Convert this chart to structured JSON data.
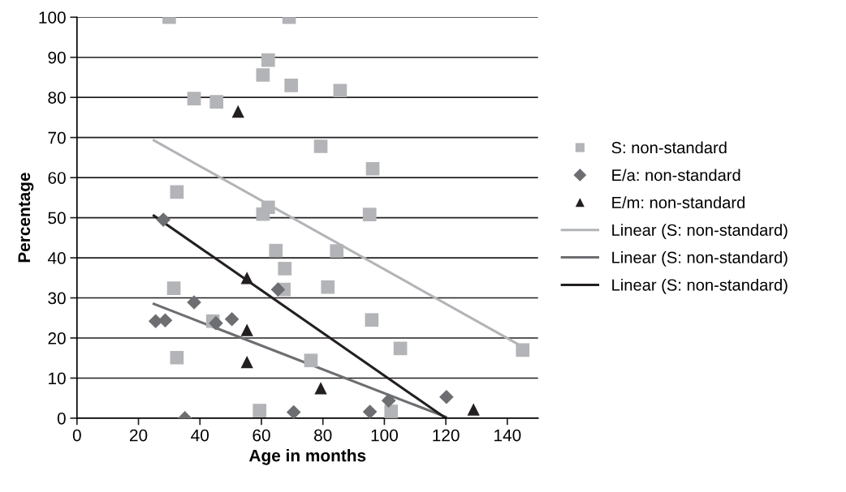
{
  "chart_data": {
    "type": "scatter",
    "xlabel": "Age in months",
    "ylabel": "Percentage",
    "xlim": [
      0,
      150
    ],
    "xticks": [
      0,
      20,
      40,
      60,
      80,
      100,
      120,
      140
    ],
    "ylim": [
      0,
      100
    ],
    "yticks": [
      0,
      10,
      20,
      30,
      40,
      50,
      60,
      70,
      80,
      90,
      100
    ],
    "grid": "y",
    "legend": "right",
    "series": [
      {
        "name": "S: non-standard",
        "color": "#b2b4b7",
        "marker": "square",
        "x": [
          30,
          69,
          62.2,
          60.5,
          69.7,
          38.1,
          45.4,
          32.5,
          62.2,
          60.5,
          85.6,
          79.3,
          96.2,
          95.2,
          84.5,
          81.6,
          95.9,
          105.2,
          145,
          76.1,
          102.2,
          64.7,
          67.6,
          67.3,
          31.5,
          44.2,
          32.5,
          59.4
        ],
        "values": [
          100,
          100,
          89.3,
          85.6,
          83,
          79.7,
          78.9,
          56.4,
          52.6,
          50.9,
          81.7,
          67.8,
          62.2,
          50.8,
          41.7,
          32.7,
          24.5,
          17.4,
          17,
          14.4,
          1.7,
          41.8,
          37.3,
          32.1,
          32.4,
          24.2,
          15.1,
          1.9
        ]
      },
      {
        "name": "E/a: non-standard",
        "color": "#6d6e71",
        "marker": "diamond",
        "x": [
          28.1,
          25.6,
          28.7,
          38.1,
          45.2,
          50.4,
          65.4,
          35.1,
          70.5,
          101.4,
          95.3,
          120.2
        ],
        "values": [
          49.5,
          24.2,
          24.4,
          28.9,
          23.7,
          24.7,
          32.1,
          0,
          1.5,
          4.4,
          1.6,
          5.3
        ]
      },
      {
        "name": "E/m: non-standard",
        "color": "#231f20",
        "marker": "triangle",
        "x": [
          52.4,
          55.3,
          55.3,
          55.3,
          79.3,
          129
        ],
        "values": [
          76.5,
          35,
          22,
          14,
          7.5,
          2.2
        ]
      },
      {
        "name": "Linear (S: non-standard)",
        "type": "line",
        "color": "#b2b4b7",
        "marker": "none",
        "x": [
          25,
          145
        ],
        "values": [
          69.3,
          17.8
        ]
      },
      {
        "name": "Linear (S: non-standard)",
        "type": "line",
        "color": "#6d6e71",
        "marker": "none",
        "x": [
          25,
          120
        ],
        "values": [
          28.5,
          0.3
        ]
      },
      {
        "name": "Linear (S: non-standard)",
        "type": "line",
        "color": "#231f20",
        "marker": "none",
        "x": [
          25,
          120
        ],
        "values": [
          50.5,
          0
        ]
      }
    ]
  }
}
